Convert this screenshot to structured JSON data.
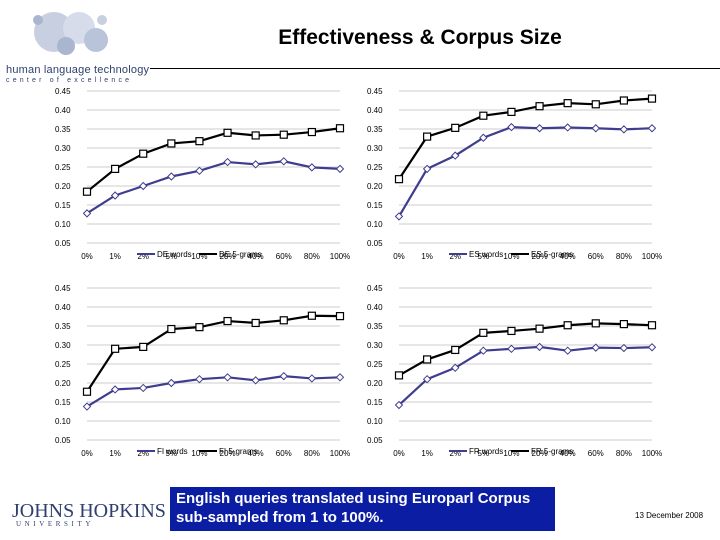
{
  "slide": {
    "title": "Effectiveness & Corpus Size",
    "caption_line1": "English queries translated using Europarl Corpus",
    "caption_line2": "sub-sampled from 1 to 100%.",
    "date": "13 December 2008"
  },
  "logos": {
    "hlt_line1": "human language technology",
    "hlt_line2": "center of excellence",
    "jhu_line1": "JOHNS HOPKINS",
    "jhu_line2": "UNIVERSITY"
  },
  "colors": {
    "words_series": "#3f3d8f",
    "grams_series": "#000000",
    "caption_bg": "#0b1ea3"
  },
  "chart_data": [
    {
      "type": "line",
      "categories": [
        "0%",
        "1%",
        "2%",
        "5%",
        "10%",
        "20%",
        "40%",
        "60%",
        "80%",
        "100%"
      ],
      "yticks": [
        "0.05",
        "0.10",
        "0.15",
        "0.20",
        "0.25",
        "0.30",
        "0.35",
        "0.40",
        "0.45"
      ],
      "ylim": [
        0.05,
        0.45
      ],
      "grid": true,
      "legend_position": "bottom",
      "series": [
        {
          "name": "DE words",
          "values": [
            0.128,
            0.175,
            0.2,
            0.225,
            0.24,
            0.263,
            0.257,
            0.265,
            0.249,
            0.245
          ]
        },
        {
          "name": "DE 5-grams",
          "values": [
            0.185,
            0.245,
            0.285,
            0.312,
            0.318,
            0.34,
            0.333,
            0.335,
            0.342,
            0.352
          ]
        }
      ]
    },
    {
      "type": "line",
      "categories": [
        "0%",
        "1%",
        "2%",
        "5%",
        "10%",
        "20%",
        "40%",
        "60%",
        "80%",
        "100%"
      ],
      "yticks": [
        "0.05",
        "0.10",
        "0.15",
        "0.20",
        "0.25",
        "0.30",
        "0.35",
        "0.40",
        "0.45"
      ],
      "ylim": [
        0.05,
        0.45
      ],
      "grid": true,
      "legend_position": "bottom",
      "series": [
        {
          "name": "ES words",
          "values": [
            0.12,
            0.245,
            0.28,
            0.327,
            0.355,
            0.352,
            0.354,
            0.352,
            0.349,
            0.352
          ]
        },
        {
          "name": "ES 5-grams",
          "values": [
            0.218,
            0.33,
            0.353,
            0.385,
            0.395,
            0.41,
            0.418,
            0.415,
            0.425,
            0.43
          ]
        }
      ]
    },
    {
      "type": "line",
      "categories": [
        "0%",
        "1%",
        "2%",
        "5%",
        "10%",
        "20%",
        "40%",
        "60%",
        "80%",
        "100%"
      ],
      "yticks": [
        "0.05",
        "0.10",
        "0.15",
        "0.20",
        "0.25",
        "0.30",
        "0.35",
        "0.40",
        "0.45"
      ],
      "ylim": [
        0.05,
        0.45
      ],
      "grid": true,
      "legend_position": "bottom",
      "series": [
        {
          "name": "FI words",
          "values": [
            0.138,
            0.183,
            0.187,
            0.2,
            0.21,
            0.215,
            0.207,
            0.218,
            0.212,
            0.215
          ]
        },
        {
          "name": "FI 5-grams",
          "values": [
            0.177,
            0.29,
            0.295,
            0.342,
            0.347,
            0.363,
            0.358,
            0.365,
            0.377,
            0.376
          ]
        }
      ]
    },
    {
      "type": "line",
      "categories": [
        "0%",
        "1%",
        "2%",
        "5%",
        "10%",
        "20%",
        "40%",
        "60%",
        "80%",
        "100%"
      ],
      "yticks": [
        "0.05",
        "0.10",
        "0.15",
        "0.20",
        "0.25",
        "0.30",
        "0.35",
        "0.40",
        "0.45"
      ],
      "ylim": [
        0.05,
        0.45
      ],
      "grid": true,
      "legend_position": "bottom",
      "series": [
        {
          "name": "FR words",
          "values": [
            0.142,
            0.21,
            0.24,
            0.285,
            0.29,
            0.295,
            0.285,
            0.293,
            0.292,
            0.294
          ]
        },
        {
          "name": "FR 5-grams",
          "values": [
            0.22,
            0.262,
            0.287,
            0.332,
            0.337,
            0.343,
            0.352,
            0.357,
            0.355,
            0.352
          ]
        }
      ]
    }
  ]
}
